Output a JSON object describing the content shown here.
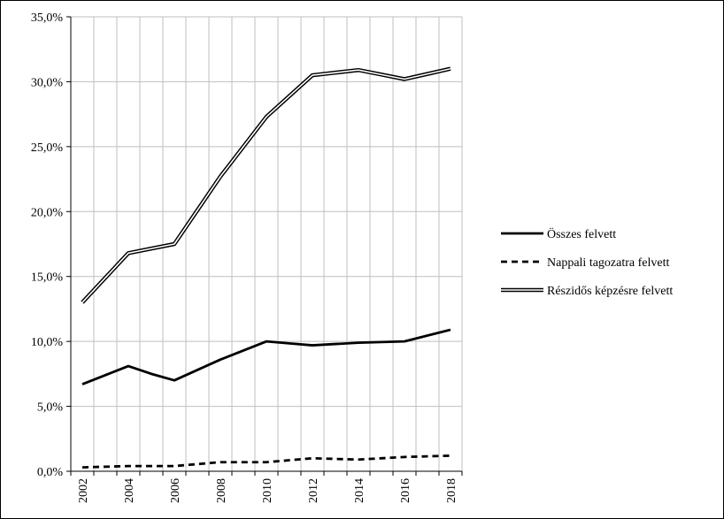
{
  "chart_data": {
    "type": "line",
    "title": "",
    "xlabel": "",
    "ylabel": "",
    "x": [
      2002,
      2003,
      2004,
      2005,
      2006,
      2007,
      2008,
      2009,
      2010,
      2011,
      2012,
      2013,
      2014,
      2015,
      2016,
      2017,
      2018
    ],
    "x_tick_labels": [
      "2002",
      "2004",
      "2006",
      "2008",
      "2010",
      "2012",
      "2014",
      "2016",
      "2018"
    ],
    "x_tick_values": [
      2002,
      2004,
      2006,
      2008,
      2010,
      2012,
      2014,
      2016,
      2018
    ],
    "y_tick_labels": [
      "0,0%",
      "5,0%",
      "10,0%",
      "15,0%",
      "20,0%",
      "25,0%",
      "30,0%",
      "35,0%"
    ],
    "y_tick_values": [
      0,
      5,
      10,
      15,
      20,
      25,
      30,
      35
    ],
    "ylim": [
      0,
      35
    ],
    "grid": true,
    "legend_position": "right",
    "series": [
      {
        "name": "Összes felvett",
        "style": "solid",
        "color": "#000000",
        "values": [
          6.7,
          7.4,
          8.1,
          7.5,
          7.0,
          7.8,
          8.6,
          9.3,
          10.0,
          9.85,
          9.7,
          9.8,
          9.9,
          9.95,
          10.0,
          10.45,
          10.9
        ]
      },
      {
        "name": "Nappali tagozatra felvett",
        "style": "dashed",
        "color": "#000000",
        "values": [
          0.3,
          0.35,
          0.4,
          0.4,
          0.4,
          0.55,
          0.7,
          0.7,
          0.7,
          0.85,
          1.0,
          0.95,
          0.9,
          1.0,
          1.1,
          1.15,
          1.2
        ]
      },
      {
        "name": "Részidős képzésre felvett",
        "style": "double",
        "color": "#000000",
        "values": [
          13.0,
          14.9,
          16.8,
          17.15,
          17.5,
          20.1,
          22.7,
          25.0,
          27.3,
          28.9,
          30.5,
          30.7,
          30.9,
          30.55,
          30.2,
          30.6,
          31.0
        ]
      }
    ]
  }
}
